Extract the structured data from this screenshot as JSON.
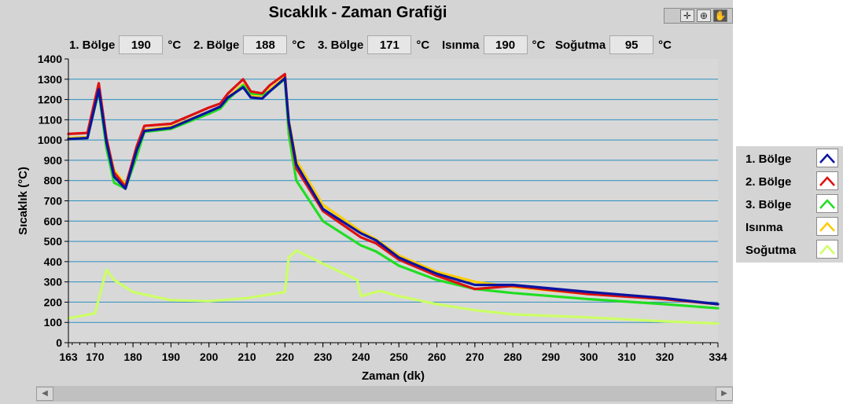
{
  "window": {
    "title": "Sıcaklık - Zaman Grafiği"
  },
  "toolbar": {
    "tools": [
      "pan-tool",
      "zoom-tool",
      "hand-tool"
    ]
  },
  "readouts": [
    {
      "label": "1. Bölge",
      "value": "190",
      "unit": "°C"
    },
    {
      "label": "2. Bölge",
      "value": "188",
      "unit": "°C"
    },
    {
      "label": "3. Bölge",
      "value": "171",
      "unit": "°C"
    },
    {
      "label": "Isınma",
      "value": "190",
      "unit": "°C"
    },
    {
      "label": "Soğutma",
      "value": "95",
      "unit": "°C"
    }
  ],
  "chart_data": {
    "type": "line",
    "title": "Sıcaklık - Zaman Grafiği",
    "xlabel": "Zaman (dk)",
    "ylabel": "Sıcaklık (°C)",
    "xlim": [
      163,
      334
    ],
    "ylim": [
      0,
      1400
    ],
    "xticks": [
      163,
      170,
      180,
      190,
      200,
      210,
      220,
      230,
      240,
      250,
      260,
      270,
      280,
      290,
      300,
      310,
      320,
      334
    ],
    "yticks": [
      0,
      100,
      200,
      300,
      400,
      500,
      600,
      700,
      800,
      900,
      1000,
      1100,
      1200,
      1300,
      1400
    ],
    "grid": "horizontal",
    "legend_position": "right",
    "background": "#d8d8d8",
    "grid_color": "#2a8fbf",
    "series": [
      {
        "name": "Soğutma",
        "color": "#ccff66",
        "x": [
          163,
          170,
          173,
          175,
          180,
          190,
          200,
          210,
          220,
          221,
          223,
          230,
          239,
          240,
          245,
          250,
          260,
          270,
          280,
          300,
          320,
          334
        ],
        "y": [
          120,
          145,
          360,
          310,
          250,
          210,
          205,
          220,
          250,
          420,
          455,
          390,
          310,
          230,
          255,
          230,
          190,
          160,
          140,
          125,
          105,
          95
        ]
      },
      {
        "name": "Isınma",
        "color": "#ffcc00",
        "x": [
          163,
          168,
          171,
          173,
          175,
          178,
          181,
          183,
          190,
          200,
          203,
          205,
          209,
          211,
          214,
          216,
          220,
          221,
          223,
          230,
          240,
          244,
          250,
          260,
          270,
          280,
          300,
          320,
          334
        ],
        "y": [
          1010,
          1015,
          1260,
          1000,
          850,
          780,
          950,
          1050,
          1065,
          1140,
          1165,
          1210,
          1275,
          1220,
          1210,
          1250,
          1310,
          1100,
          900,
          680,
          550,
          510,
          430,
          350,
          300,
          275,
          240,
          215,
          190
        ]
      },
      {
        "name": "3. Bölge",
        "color": "#22dd22",
        "x": [
          163,
          168,
          171,
          173,
          175,
          178,
          181,
          183,
          190,
          200,
          203,
          205,
          209,
          211,
          214,
          216,
          220,
          221,
          223,
          230,
          240,
          244,
          250,
          260,
          270,
          280,
          300,
          320,
          334
        ],
        "y": [
          1005,
          1010,
          1240,
          960,
          790,
          760,
          920,
          1040,
          1055,
          1130,
          1155,
          1200,
          1270,
          1230,
          1225,
          1240,
          1300,
          1030,
          800,
          600,
          480,
          450,
          380,
          310,
          265,
          245,
          215,
          190,
          170
        ]
      },
      {
        "name": "2. Bölge",
        "color": "#dd1111",
        "x": [
          163,
          168,
          171,
          173,
          175,
          178,
          181,
          183,
          190,
          200,
          203,
          205,
          209,
          211,
          214,
          216,
          220,
          221,
          223,
          230,
          240,
          244,
          250,
          260,
          270,
          280,
          300,
          320,
          334
        ],
        "y": [
          1030,
          1035,
          1280,
          1010,
          840,
          770,
          970,
          1070,
          1080,
          1160,
          1180,
          1230,
          1300,
          1240,
          1230,
          1270,
          1325,
          1080,
          860,
          650,
          520,
          490,
          410,
          330,
          265,
          280,
          240,
          215,
          190
        ]
      },
      {
        "name": "1. Bölge",
        "color": "#0a14a0",
        "x": [
          163,
          168,
          171,
          173,
          175,
          178,
          181,
          183,
          190,
          200,
          203,
          205,
          209,
          211,
          214,
          216,
          220,
          221,
          223,
          230,
          240,
          244,
          250,
          260,
          270,
          280,
          300,
          320,
          334
        ],
        "y": [
          1005,
          1010,
          1250,
          990,
          820,
          760,
          950,
          1045,
          1060,
          1140,
          1165,
          1210,
          1260,
          1210,
          1205,
          1240,
          1305,
          1090,
          880,
          660,
          540,
          505,
          420,
          340,
          285,
          285,
          250,
          220,
          190
        ]
      }
    ]
  },
  "legend": [
    {
      "label": "1. Bölge",
      "color": "#0a14a0"
    },
    {
      "label": "2. Bölge",
      "color": "#dd1111"
    },
    {
      "label": "3. Bölge",
      "color": "#22dd22"
    },
    {
      "label": "Isınma",
      "color": "#ffcc00"
    },
    {
      "label": "Soğutma",
      "color": "#ccff66"
    }
  ]
}
